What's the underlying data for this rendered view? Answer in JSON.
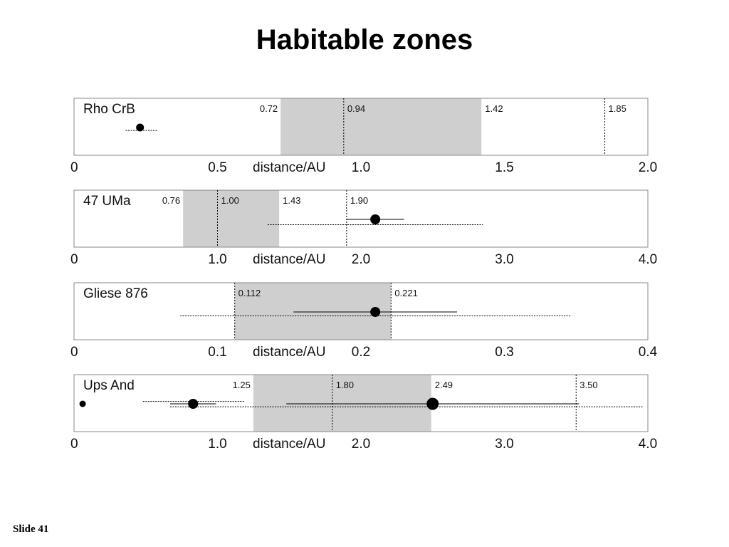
{
  "slide": {
    "title": "Habitable zones",
    "number": "Slide 41"
  },
  "chart_data": [
    {
      "type": "scatter",
      "star": "Rho CrB",
      "xlabel": "distance/AU",
      "xlim": [
        0,
        2.0
      ],
      "ticks": [
        "0",
        "0.5",
        "1.0",
        "1.5",
        "2.0"
      ],
      "tick_values": [
        0,
        0.5,
        1.0,
        1.5,
        2.0
      ],
      "zone": {
        "inner": 0.72,
        "outer": 1.42
      },
      "bounds": [
        {
          "value": 0.72,
          "label": "0.72",
          "line": false
        },
        {
          "value": 0.94,
          "label": "0.94",
          "line": true
        },
        {
          "value": 1.42,
          "label": "1.42",
          "line": false
        },
        {
          "value": 1.85,
          "label": "1.85",
          "line": true
        }
      ],
      "planets": [
        {
          "a": 0.23,
          "row": 1,
          "size": "medium",
          "ranges": [
            {
              "from": 0.18,
              "to": 0.29,
              "style": "dotted",
              "offset": 0.12
            }
          ]
        }
      ]
    },
    {
      "type": "scatter",
      "star": "47 UMa",
      "xlabel": "distance/AU",
      "xlim": [
        0,
        4.0
      ],
      "ticks": [
        "0",
        "1.0",
        "2.0",
        "3.0",
        "4.0"
      ],
      "tick_values": [
        0,
        1.0,
        2.0,
        3.0,
        4.0
      ],
      "zone": {
        "inner": 0.76,
        "outer": 1.43
      },
      "bounds": [
        {
          "value": 0.76,
          "label": "0.76",
          "line": false
        },
        {
          "value": 1.0,
          "label": "1.00",
          "line": true
        },
        {
          "value": 1.43,
          "label": "1.43",
          "line": false
        },
        {
          "value": 1.9,
          "label": "1.90",
          "line": true
        }
      ],
      "planets": [
        {
          "a": 2.1,
          "row": 1,
          "size": "large",
          "ranges": [
            {
              "from": 1.9,
              "to": 2.3,
              "style": "solid",
              "offset": 0
            },
            {
              "from": 1.35,
              "to": 2.85,
              "style": "dotted",
              "offset": 0.22
            }
          ]
        }
      ]
    },
    {
      "type": "scatter",
      "star": "Gliese 876",
      "xlabel": "distance/AU",
      "xlim": [
        0,
        0.4
      ],
      "ticks": [
        "0",
        "0.1",
        "0.2",
        "0.3",
        "0.4"
      ],
      "tick_values": [
        0,
        0.1,
        0.2,
        0.3,
        0.4
      ],
      "zone": {
        "inner": 0.112,
        "outer": 0.221
      },
      "bounds": [
        {
          "value": 0.112,
          "label": "0.112",
          "line": true
        },
        {
          "value": 0.221,
          "label": "0.221",
          "line": true
        }
      ],
      "planets": [
        {
          "a": 0.21,
          "row": 1,
          "size": "large",
          "ranges": [
            {
              "from": 0.153,
              "to": 0.267,
              "style": "solid",
              "offset": 0
            },
            {
              "from": 0.074,
              "to": 0.346,
              "style": "dotted",
              "offset": 0.16
            }
          ]
        }
      ]
    },
    {
      "type": "scatter",
      "star": "Ups And",
      "xlabel": "distance/AU",
      "xlim": [
        0,
        4.0
      ],
      "ticks": [
        "0",
        "1.0",
        "2.0",
        "3.0",
        "4.0"
      ],
      "tick_values": [
        0,
        1.0,
        2.0,
        3.0,
        4.0
      ],
      "zone": {
        "inner": 1.25,
        "outer": 2.49
      },
      "bounds": [
        {
          "value": 1.25,
          "label": "1.25",
          "line": false
        },
        {
          "value": 1.8,
          "label": "1.80",
          "line": true
        },
        {
          "value": 2.49,
          "label": "2.49",
          "line": false
        },
        {
          "value": 3.5,
          "label": "3.50",
          "line": true
        }
      ],
      "planets": [
        {
          "a": 0.06,
          "row": 1,
          "size": "small",
          "ranges": []
        },
        {
          "a": 0.83,
          "row": 1,
          "size": "large",
          "ranges": [
            {
              "from": 0.67,
              "to": 0.99,
              "style": "solid",
              "offset": 0
            },
            {
              "from": 0.48,
              "to": 1.19,
              "style": "dotted",
              "offset": -0.1
            }
          ]
        },
        {
          "a": 2.5,
          "row": 1,
          "size": "xlarge",
          "ranges": [
            {
              "from": 1.48,
              "to": 3.52,
              "style": "solid",
              "offset": 0
            },
            {
              "from": 0.67,
              "to": 3.97,
              "style": "dotted",
              "offset": 0.12
            }
          ]
        }
      ]
    }
  ]
}
